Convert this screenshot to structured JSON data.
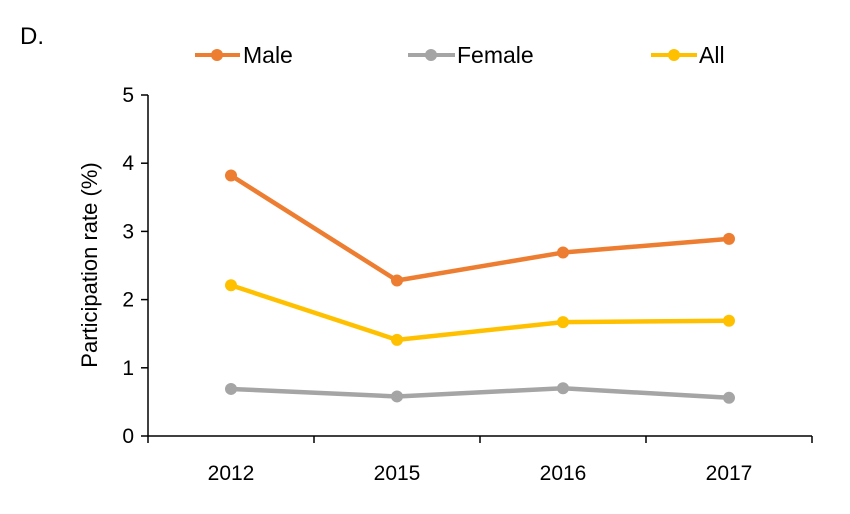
{
  "panel_label": "D.",
  "chart_data": {
    "type": "line",
    "title": "",
    "xlabel": "",
    "ylabel": "Participation rate (%)",
    "categories": [
      "2012",
      "2015",
      "2016",
      "2017"
    ],
    "ylim": [
      0,
      5
    ],
    "yticks": [
      "0",
      "1",
      "2",
      "3",
      "4",
      "5"
    ],
    "grid": false,
    "legend_position": "top",
    "series": [
      {
        "name": "Male",
        "color": "#ED7D31",
        "values": [
          3.82,
          2.28,
          2.69,
          2.89
        ]
      },
      {
        "name": "Female",
        "color": "#A5A5A5",
        "values": [
          0.69,
          0.58,
          0.7,
          0.56
        ]
      },
      {
        "name": "All",
        "color": "#FFC000",
        "values": [
          2.21,
          1.41,
          1.67,
          1.69
        ]
      }
    ]
  }
}
